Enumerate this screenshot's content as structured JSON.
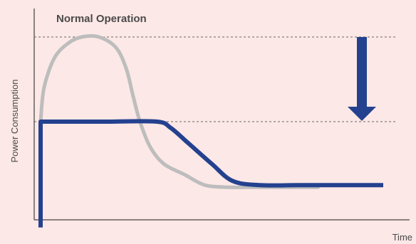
{
  "chart_data": {
    "type": "line",
    "title": "Normal Operation",
    "xlabel": "Time",
    "ylabel": "Power Consumption",
    "xlim": [
      0,
      100
    ],
    "ylim": [
      0,
      100
    ],
    "grid": false,
    "reference_lines": [
      {
        "y": 90
      },
      {
        "y": 50
      }
    ],
    "series": [
      {
        "x": [
          0,
          1,
          4,
          8,
          12,
          17,
          22,
          25,
          27,
          29,
          32,
          36,
          42,
          48,
          55,
          60,
          70,
          81
        ],
        "values": [
          50,
          66,
          80,
          87,
          90,
          90,
          85,
          75,
          62,
          50,
          38,
          30,
          25,
          20,
          19,
          19,
          19,
          19
        ]
      },
      {
        "x": [
          0,
          0,
          0.5,
          20,
          34,
          38,
          43,
          50,
          56,
          64,
          75,
          85,
          100
        ],
        "values": [
          0,
          50,
          50,
          50,
          50,
          47,
          40,
          30,
          22,
          20,
          20,
          20,
          20
        ]
      }
    ],
    "colors": {
      "background": "#fce8e6",
      "axis": "#1a1a1a",
      "reference": "#666666",
      "series_gray": "#bdbdbd",
      "series_blue": "#24418f",
      "arrow": "#24418f",
      "text": "#4a4a4a"
    }
  }
}
